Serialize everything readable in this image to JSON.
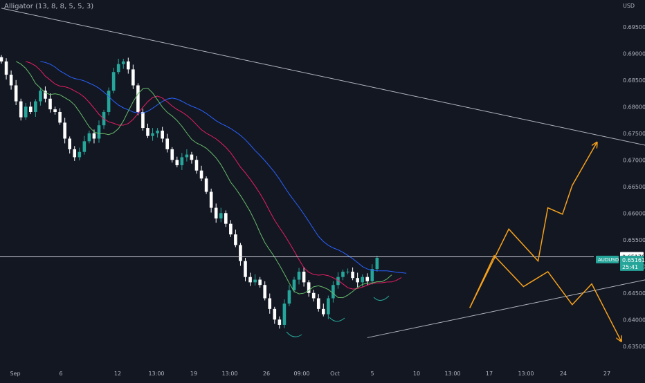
{
  "indicator": {
    "label": "Alligator (13, 8, 8, 5, 5, 3)"
  },
  "currency": "USD",
  "colors": {
    "background": "#131722",
    "bull": "#26a69a",
    "bear": "#ffffff",
    "jaw": "#2962ff",
    "teeth": "#e91e63",
    "lips": "#66bb6a",
    "trendline": "#b2b5be",
    "projection": "#f7a21b",
    "axis_text": "#b2b5be",
    "price_badge": "#26a69a"
  },
  "price_badges": {
    "level": "0.65179",
    "symbol": "AUDUSD",
    "price": "0.65161",
    "countdown": "25:41"
  },
  "chart_data": {
    "type": "candlestick",
    "title": "",
    "symbol": "AUDUSD",
    "y_ticks": [
      "0.69500",
      "0.69000",
      "0.68500",
      "0.68000",
      "0.67500",
      "0.67000",
      "0.66500",
      "0.66000",
      "0.65500",
      "0.65000",
      "0.64500",
      "0.64000",
      "0.63500"
    ],
    "ylim": [
      0.6325,
      0.699
    ],
    "x_ticks": [
      "Sep",
      "6",
      "12",
      "13:00",
      "19",
      "13:00",
      "26",
      "09:00",
      "Oct",
      "5",
      "10",
      "13:00",
      "17",
      "13:00",
      "24",
      "27"
    ],
    "close_series": [
      0.6885,
      0.686,
      0.684,
      0.681,
      0.678,
      0.68,
      0.679,
      0.681,
      0.683,
      0.6815,
      0.6795,
      0.679,
      0.677,
      0.674,
      0.672,
      0.6705,
      0.6715,
      0.6735,
      0.675,
      0.674,
      0.6765,
      0.679,
      0.683,
      0.6865,
      0.688,
      0.6885,
      0.687,
      0.684,
      0.679,
      0.676,
      0.6745,
      0.675,
      0.6755,
      0.674,
      0.672,
      0.67,
      0.669,
      0.6705,
      0.671,
      0.67,
      0.668,
      0.6665,
      0.664,
      0.661,
      0.659,
      0.66,
      0.658,
      0.656,
      0.654,
      0.651,
      0.648,
      0.647,
      0.6475,
      0.6465,
      0.644,
      0.642,
      0.64,
      0.639,
      0.643,
      0.6455,
      0.6475,
      0.649,
      0.647,
      0.645,
      0.644,
      0.642,
      0.641,
      0.644,
      0.6465,
      0.648,
      0.649,
      0.649,
      0.6478,
      0.647,
      0.648,
      0.6472,
      0.6495,
      0.6516
    ],
    "last_price": 0.65161,
    "level_line": 0.65179,
    "trendlines": [
      {
        "name": "descending resistance",
        "points": [
          [
            0,
            0.6985
          ],
          [
            164,
            0.6665
          ]
        ]
      },
      {
        "name": "ascending support",
        "points": [
          [
            75,
            0.6366
          ],
          [
            140,
            0.649
          ]
        ]
      }
    ],
    "projections": [
      {
        "name": "bullish path",
        "points": [
          [
            96,
            0.6422
          ],
          [
            104,
            0.657
          ],
          [
            110,
            0.651
          ],
          [
            112,
            0.661
          ],
          [
            115,
            0.6598
          ],
          [
            117,
            0.6652
          ],
          [
            122,
            0.6732
          ]
        ]
      },
      {
        "name": "bearish path",
        "points": [
          [
            96,
            0.6422
          ],
          [
            101,
            0.652
          ],
          [
            107,
            0.6462
          ],
          [
            112,
            0.649
          ],
          [
            117,
            0.6428
          ],
          [
            121,
            0.6467
          ],
          [
            127,
            0.636
          ]
        ]
      }
    ],
    "grid": false
  }
}
